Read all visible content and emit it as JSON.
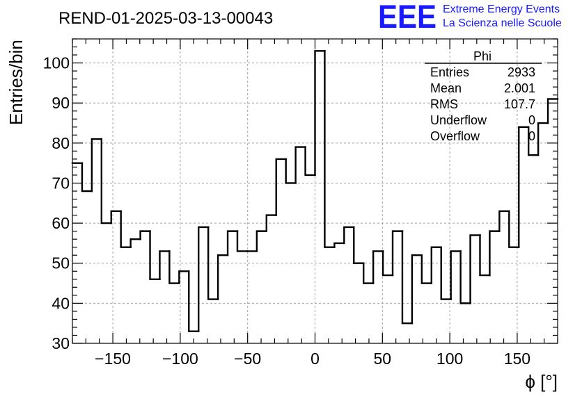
{
  "chart_data": {
    "type": "bar",
    "title": "REND-01-2025-03-13-00043",
    "xlabel": "ϕ [°]",
    "ylabel": "Entries/bin",
    "xlim": [
      -180,
      180
    ],
    "ylim": [
      30,
      106
    ],
    "bin_width": 7.2,
    "x_ticks": [
      -150,
      -100,
      -50,
      0,
      50,
      100,
      150
    ],
    "x_tick_labels": [
      "−150",
      "−100",
      "−50",
      "0",
      "50",
      "100",
      "150"
    ],
    "y_ticks": [
      30,
      40,
      50,
      60,
      70,
      80,
      90,
      100
    ],
    "y_tick_labels": [
      "30",
      "40",
      "50",
      "60",
      "70",
      "80",
      "90",
      "100"
    ],
    "grid": true,
    "bin_lower_edges": [
      -180,
      -172.8,
      -165.6,
      -158.4,
      -151.2,
      -144,
      -136.8,
      -129.6,
      -122.4,
      -115.2,
      -108,
      -100.8,
      -93.6,
      -86.4,
      -79.2,
      -72,
      -64.8,
      -57.6,
      -50.4,
      -43.2,
      -36,
      -28.8,
      -21.6,
      -14.4,
      -7.2,
      0,
      7.2,
      14.4,
      21.6,
      28.8,
      36,
      43.2,
      50.4,
      57.6,
      64.8,
      72,
      79.2,
      86.4,
      93.6,
      100.8,
      108,
      115.2,
      122.4,
      129.6,
      136.8,
      144,
      151.2,
      158.4,
      165.6,
      172.8
    ],
    "values": [
      75,
      68,
      81,
      60,
      63,
      54,
      56,
      58,
      46,
      53,
      45,
      48,
      33,
      59,
      41,
      52,
      58,
      53,
      53,
      58,
      62,
      76,
      70,
      79,
      72,
      103,
      54,
      55,
      59,
      50,
      45,
      53,
      47,
      58,
      35,
      52,
      45,
      54,
      41,
      53,
      40,
      57,
      47,
      58,
      63,
      54,
      84,
      77,
      85,
      91
    ],
    "stats_box": {
      "title": "Phi",
      "rows": [
        {
          "label": "Entries",
          "value": "2933"
        },
        {
          "label": "Mean",
          "value": "2.001"
        },
        {
          "label": "RMS",
          "value": "107.7"
        },
        {
          "label": "Underflow",
          "value": "0"
        },
        {
          "label": "Overflow",
          "value": "0"
        }
      ]
    }
  },
  "logo": {
    "mark": "EEE",
    "line1": "Extreme Energy Events",
    "line2": "La Scienza nelle Scuole",
    "color": "#1a1aff"
  },
  "colors": {
    "line": "#000000",
    "grid": "#a0a0a0",
    "logo": "#1a1aff"
  }
}
